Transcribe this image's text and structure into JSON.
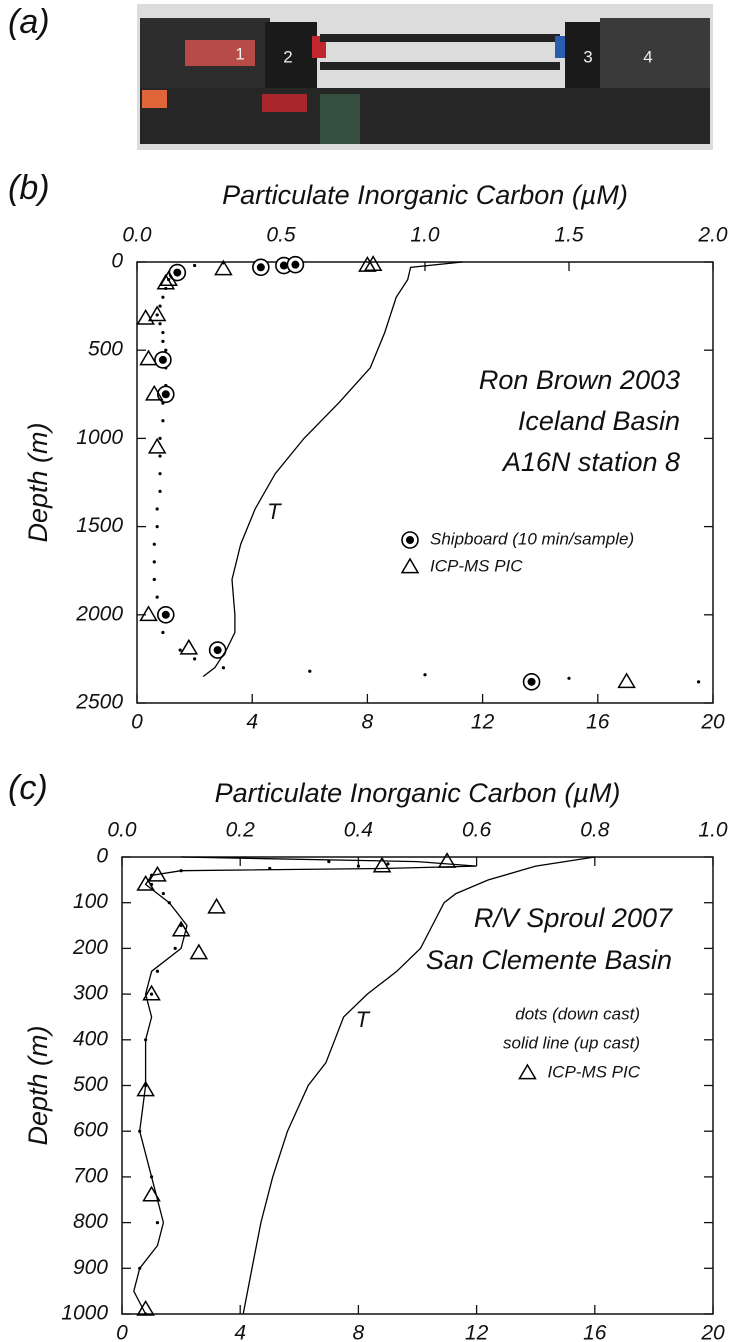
{
  "panel_labels": [
    "(a)",
    "(b)",
    "(c)"
  ],
  "photo": {
    "labels": [
      "1",
      "2",
      "3",
      "4"
    ]
  },
  "chart_data": [
    {
      "type": "scatter",
      "x_label": "Particulate Inorganic Carbon (µM)",
      "y_label": "Depth (m)",
      "xlim": [
        0,
        2
      ],
      "xticks": [
        {
          "value": 0,
          "label": "0.0"
        },
        {
          "value": 0.5,
          "label": "0.5"
        },
        {
          "value": 1,
          "label": "1.0"
        },
        {
          "value": 1.5,
          "label": "1.5"
        },
        {
          "value": 2,
          "label": "2.0"
        }
      ],
      "x2lim": [
        0,
        20
      ],
      "x2ticks": [
        0,
        4,
        8,
        12,
        16,
        20
      ],
      "ylim": [
        0,
        2500
      ],
      "y_inverted": true,
      "yticks": [
        0,
        500,
        1000,
        1500,
        2000,
        2500
      ],
      "grid": false,
      "annotations": [
        "Ron Brown 2003",
        "Iceland Basin",
        "A16N station 8"
      ],
      "series": [
        {
          "color": "#000000",
          "marker": "dot",
          "x": [
            0.3,
            0.2,
            0.16,
            0.13,
            0.12,
            0.11,
            0.1,
            0.09,
            0.08,
            0.07,
            0.08,
            0.09,
            0.09,
            0.1,
            0.1,
            0.1,
            0.1,
            0.09,
            0.09,
            0.08,
            0.08,
            0.08,
            0.08,
            0.07,
            0.07,
            0.06,
            0.06,
            0.06,
            0.07,
            0.08,
            0.09,
            0.15,
            0.2,
            0.3,
            0.6,
            1.0,
            1.5,
            1.95
          ],
          "values": [
            5,
            20,
            40,
            60,
            80,
            100,
            150,
            200,
            250,
            300,
            350,
            400,
            450,
            500,
            550,
            600,
            700,
            800,
            900,
            1000,
            1100,
            1200,
            1300,
            1400,
            1500,
            1600,
            1700,
            1800,
            1900,
            2000,
            2100,
            2200,
            2250,
            2300,
            2320,
            2340,
            2360,
            2380
          ]
        },
        {
          "name": "Shipboard (10 min/sample)",
          "color": "#000000",
          "marker": "circle-dot",
          "x": [
            0.14,
            0.43,
            0.51,
            0.55,
            0.09,
            0.1,
            0.1,
            0.28,
            1.37
          ],
          "values": [
            60,
            30,
            20,
            15,
            555,
            750,
            2000,
            2200,
            2380
          ]
        },
        {
          "name": "ICP-MS PIC",
          "color": "#000000",
          "marker": "triangle",
          "x": [
            0.1,
            0.11,
            0.3,
            0.8,
            0.82,
            0.03,
            0.07,
            0.04,
            0.06,
            0.07,
            0.04,
            0.18,
            1.7
          ],
          "values": [
            120,
            100,
            40,
            20,
            15,
            320,
            300,
            550,
            750,
            1050,
            2000,
            2190,
            2380
          ]
        },
        {
          "name": "T",
          "color": "#000000",
          "marker": "line",
          "axis": "x2",
          "in_legend": false,
          "x": [
            11.3,
            9.5,
            9.4,
            9.0,
            8.6,
            8.1,
            7.0,
            5.8,
            4.8,
            4.1,
            3.6,
            3.3,
            3.4,
            3.4,
            3.1,
            2.7,
            2.3
          ],
          "values": [
            0,
            30,
            100,
            200,
            400,
            600,
            800,
            1000,
            1200,
            1400,
            1600,
            1800,
            2000,
            2100,
            2200,
            2300,
            2350
          ]
        }
      ]
    },
    {
      "type": "scatter",
      "x_label": "Particulate Inorganic Carbon (µM)",
      "y_label": "Depth (m)",
      "xlim": [
        0,
        1
      ],
      "xticks": [
        {
          "value": 0,
          "label": "0.0"
        },
        {
          "value": 0.2,
          "label": "0.2"
        },
        {
          "value": 0.4,
          "label": "0.4"
        },
        {
          "value": 0.6,
          "label": "0.6"
        },
        {
          "value": 0.8,
          "label": "0.8"
        },
        {
          "value": 1,
          "label": "1.0"
        }
      ],
      "x2lim": [
        0,
        20
      ],
      "x2ticks": [
        0,
        4,
        8,
        12,
        16,
        20
      ],
      "ylim": [
        0,
        1000
      ],
      "y_inverted": true,
      "yticks": [
        0,
        100,
        200,
        300,
        400,
        500,
        600,
        700,
        800,
        900,
        1000
      ],
      "grid": false,
      "annotations": [
        "R/V Sproul 2007",
        "San Clemente Basin"
      ],
      "series": [
        {
          "name": "dots (down cast)",
          "color": "#000000",
          "marker": "dot",
          "x": [
            0.35,
            0.45,
            0.4,
            0.25,
            0.1,
            0.05,
            0.05,
            0.07,
            0.08,
            0.1,
            0.09,
            0.06,
            0.05,
            0.04,
            0.04,
            0.03,
            0.05,
            0.06,
            0.03,
            0.04
          ],
          "values": [
            10,
            15,
            20,
            25,
            30,
            40,
            60,
            80,
            100,
            150,
            200,
            250,
            300,
            400,
            500,
            600,
            700,
            800,
            900,
            1000
          ]
        },
        {
          "name": "solid line (up cast)",
          "color": "#000000",
          "marker": "line",
          "x": [
            0.1,
            0.5,
            0.6,
            0.45,
            0.1,
            0.05,
            0.04,
            0.06,
            0.08,
            0.11,
            0.1,
            0.05,
            0.04,
            0.05,
            0.04,
            0.04,
            0.03,
            0.05,
            0.07,
            0.06,
            0.03,
            0.02,
            0.04
          ],
          "values": [
            0,
            10,
            20,
            25,
            30,
            40,
            60,
            80,
            100,
            150,
            200,
            250,
            300,
            350,
            400,
            500,
            600,
            700,
            800,
            850,
            900,
            950,
            1000
          ]
        },
        {
          "name": "ICP-MS PIC",
          "color": "#000000",
          "marker": "triangle",
          "x": [
            0.44,
            0.55,
            0.06,
            0.04,
            0.16,
            0.1,
            0.13,
            0.05,
            0.04,
            0.05,
            0.04
          ],
          "values": [
            20,
            10,
            40,
            60,
            110,
            160,
            210,
            300,
            510,
            740,
            990
          ]
        },
        {
          "name": "T",
          "color": "#000000",
          "marker": "line",
          "axis": "x2",
          "in_legend": false,
          "x": [
            16.0,
            14.0,
            12.4,
            11.3,
            10.9,
            10.5,
            10.1,
            9.3,
            8.3,
            7.5,
            7.2,
            6.9,
            6.3,
            5.6,
            5.1,
            4.7,
            4.4,
            4.1
          ],
          "values": [
            0,
            20,
            50,
            80,
            100,
            150,
            200,
            250,
            300,
            350,
            400,
            450,
            500,
            600,
            700,
            800,
            900,
            1000
          ]
        }
      ]
    }
  ]
}
